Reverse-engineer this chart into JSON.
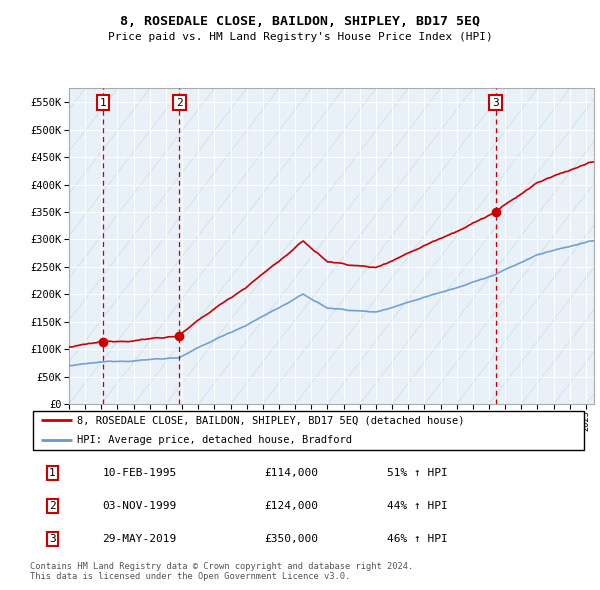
{
  "title": "8, ROSEDALE CLOSE, BAILDON, SHIPLEY, BD17 5EQ",
  "subtitle": "Price paid vs. HM Land Registry's House Price Index (HPI)",
  "ylim": [
    0,
    575000
  ],
  "yticks": [
    0,
    50000,
    100000,
    150000,
    200000,
    250000,
    300000,
    350000,
    400000,
    450000,
    500000,
    550000
  ],
  "transactions": [
    {
      "date": 1995.11,
      "price": 114000,
      "label": "1"
    },
    {
      "date": 1999.84,
      "price": 124000,
      "label": "2"
    },
    {
      "date": 2019.41,
      "price": 350000,
      "label": "3"
    }
  ],
  "hpi_color": "#6699cc",
  "price_color": "#cc0000",
  "background_color": "#e8f0f8",
  "grid_color": "#ffffff",
  "label1_text": "8, ROSEDALE CLOSE, BAILDON, SHIPLEY, BD17 5EQ (detached house)",
  "label2_text": "HPI: Average price, detached house, Bradford",
  "table_rows": [
    [
      "1",
      "10-FEB-1995",
      "£114,000",
      "51% ↑ HPI"
    ],
    [
      "2",
      "03-NOV-1999",
      "£124,000",
      "44% ↑ HPI"
    ],
    [
      "3",
      "29-MAY-2019",
      "£350,000",
      "46% ↑ HPI"
    ]
  ],
  "footer": "Contains HM Land Registry data © Crown copyright and database right 2024.\nThis data is licensed under the Open Government Licence v3.0.",
  "xmin": 1993,
  "xmax": 2025.5
}
